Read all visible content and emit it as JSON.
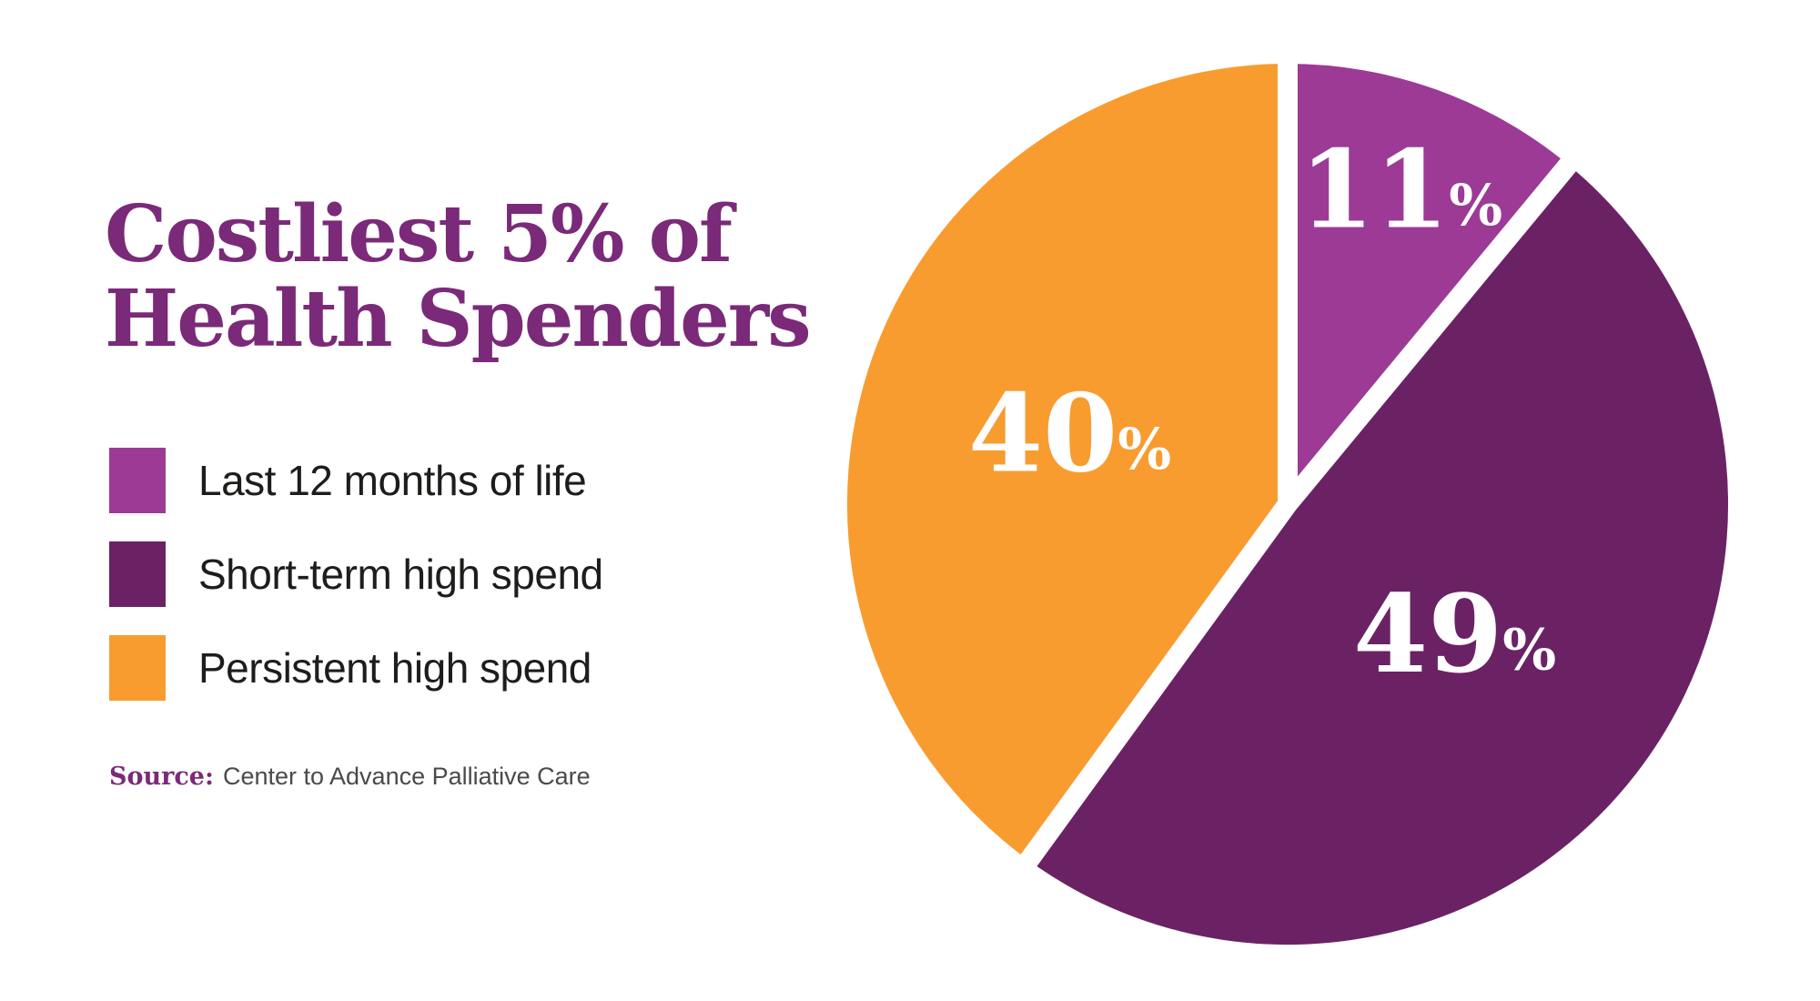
{
  "title": {
    "line1": "Costliest 5% of",
    "line2": "Health Spenders"
  },
  "legend": {
    "items": [
      {
        "label": "Last 12 months of life",
        "color": "#9C3A96"
      },
      {
        "label": "Short-term high spend",
        "color": "#6B2265"
      },
      {
        "label": "Persistent high spend",
        "color": "#F89C30"
      }
    ]
  },
  "source": {
    "label": "Source:",
    "text": "Center to Advance Palliative Care"
  },
  "colors": {
    "title_purple": "#7A2A78",
    "magenta": "#9C3A96",
    "dark_purple": "#6B2265",
    "orange": "#F89C30",
    "slice_gap": "#FFFFFF",
    "legend_text": "#1d1d1b",
    "source_text": "#4a4a48",
    "background": "#FFFFFF"
  },
  "chart_data": {
    "type": "pie",
    "title": "Costliest 5% of Health Spenders",
    "start_angle_deg": 0,
    "direction": "clockwise",
    "gap_color": "#FFFFFF",
    "percent_sign": "%",
    "legend_position": "left",
    "slices": [
      {
        "label": "Last 12 months of life",
        "value": 11,
        "display": "11",
        "color": "#9C3A96",
        "label_r": 0.76
      },
      {
        "label": "Short-term high spend",
        "value": 49,
        "display": "49",
        "color": "#6B2265",
        "label_r": 0.48
      },
      {
        "label": "Persistent high spend",
        "value": 40,
        "display": "40",
        "color": "#F89C30",
        "label_r": 0.52
      }
    ]
  }
}
